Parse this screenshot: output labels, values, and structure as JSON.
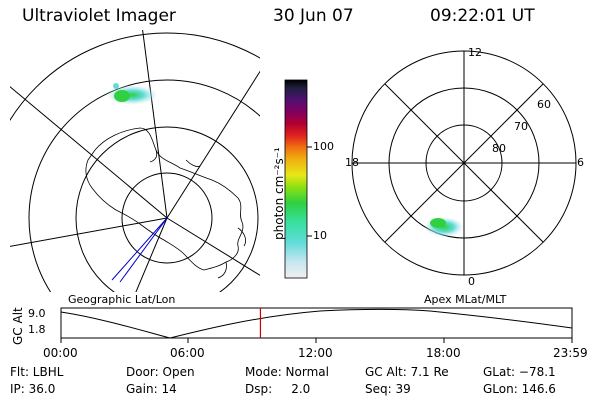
{
  "header": {
    "title": "Ultraviolet Imager",
    "date": "30 Jun 07",
    "time": "09:22:01 UT"
  },
  "colorbar": {
    "label": "photon cm⁻²s⁻¹",
    "ticks": [
      "100",
      "10"
    ],
    "scale": "log",
    "colors": [
      "#f0f0f0",
      "#c8e6f0",
      "#60dcd8",
      "#38e0a0",
      "#30d040",
      "#90e010",
      "#e8e818",
      "#f0b010",
      "#f07010",
      "#e02020",
      "#b00030",
      "#800060",
      "#501070",
      "#202040",
      "#000000"
    ]
  },
  "left_map": {
    "caption": "Geographic Lat/Lon"
  },
  "right_map": {
    "caption": "Apex MLat/MLT",
    "mlt_labels": {
      "top": "12",
      "left": "18",
      "right": "6",
      "bottom": "0"
    },
    "lat_labels": [
      "60",
      "70",
      "80"
    ]
  },
  "timeline": {
    "ylabel": "GC Alt",
    "ticks_y": [
      "9.0",
      "1.8"
    ],
    "ticks_x": [
      "00:00",
      "06:00",
      "12:00",
      "18:00",
      "23:59"
    ],
    "marker_time": "09:22",
    "marker_color": "#cc0000"
  },
  "info": {
    "flt": "Flt: LBHL",
    "ip": "IP: 36.0",
    "door": "Door: Open",
    "gain": "Gain: 14",
    "mode": "Mode: Normal",
    "dsp": "Dsp:     2.0",
    "gcalt": "GC Alt: 7.1 Re",
    "seq": "Seq: 39",
    "glat": "GLat: −78.1",
    "glon": "GLon: 146.6"
  }
}
